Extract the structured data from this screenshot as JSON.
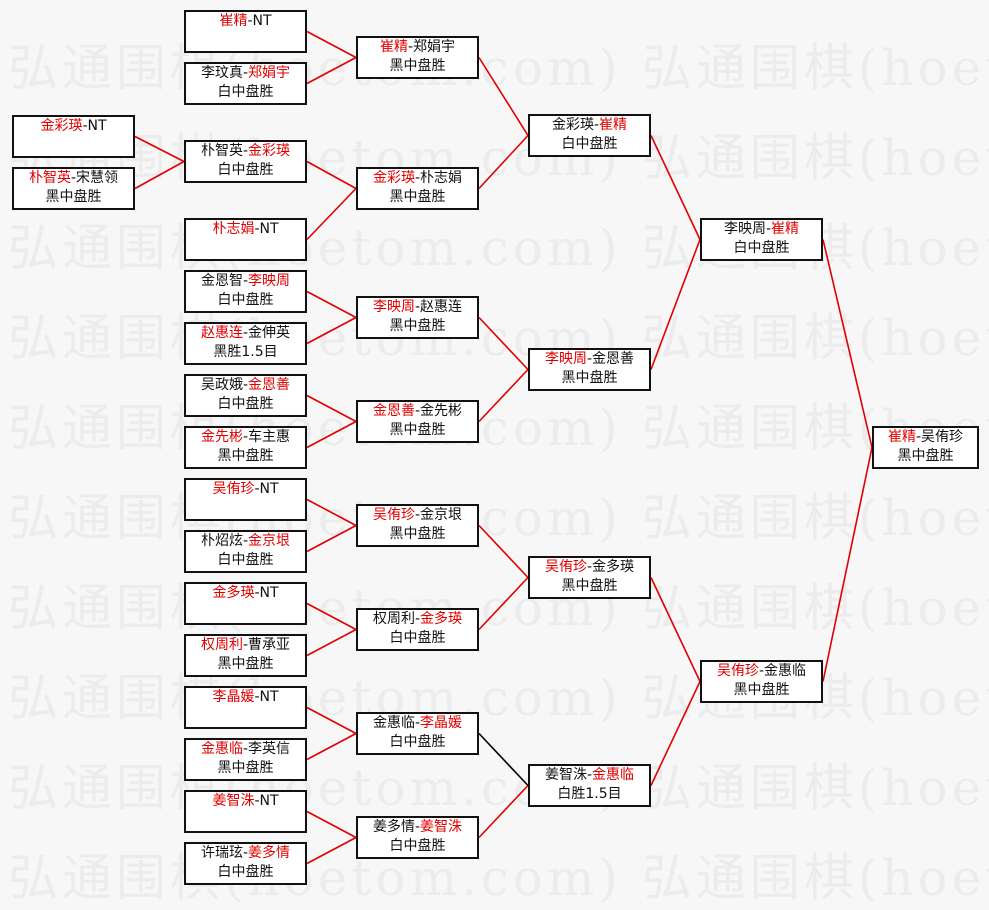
{
  "watermark": "弘通围棋(hoetom.com)",
  "colors": {
    "winner": "#e00000",
    "line": "#e00000",
    "line_alt": "#000000",
    "border": "#111111"
  },
  "separator": "-",
  "matches": [
    {
      "p1": "金彩瑛",
      "p2": "NT",
      "winner": 1,
      "result": ""
    },
    {
      "p1": "朴智英",
      "p2": "宋慧领",
      "winner": 1,
      "result": "黑中盘胜"
    },
    {
      "p1": "崔精",
      "p2": "NT",
      "winner": 1,
      "result": ""
    },
    {
      "p1": "李玟真",
      "p2": "郑娟宇",
      "winner": 2,
      "result": "白中盘胜"
    },
    {
      "p1": "朴智英",
      "p2": "金彩瑛",
      "winner": 2,
      "result": "白中盘胜"
    },
    {
      "p1": "朴志娟",
      "p2": "NT",
      "winner": 1,
      "result": ""
    },
    {
      "p1": "金恩智",
      "p2": "李映周",
      "winner": 2,
      "result": "白中盘胜"
    },
    {
      "p1": "赵惠连",
      "p2": "金伸英",
      "winner": 1,
      "result": "黑胜1.5目"
    },
    {
      "p1": "吴政娥",
      "p2": "金恩善",
      "winner": 2,
      "result": "白中盘胜"
    },
    {
      "p1": "金先彬",
      "p2": "车主惠",
      "winner": 1,
      "result": "黑中盘胜"
    },
    {
      "p1": "吴侑珍",
      "p2": "NT",
      "winner": 1,
      "result": ""
    },
    {
      "p1": "朴炤炫",
      "p2": "金京垠",
      "winner": 2,
      "result": "白中盘胜"
    },
    {
      "p1": "金多瑛",
      "p2": "NT",
      "winner": 1,
      "result": ""
    },
    {
      "p1": "权周利",
      "p2": "曹承亚",
      "winner": 1,
      "result": "黑中盘胜"
    },
    {
      "p1": "李晶媛",
      "p2": "NT",
      "winner": 1,
      "result": ""
    },
    {
      "p1": "金惠临",
      "p2": "李英信",
      "winner": 1,
      "result": "黑中盘胜"
    },
    {
      "p1": "姜智洙",
      "p2": "NT",
      "winner": 1,
      "result": ""
    },
    {
      "p1": "许瑞玹",
      "p2": "姜多情",
      "winner": 2,
      "result": "白中盘胜"
    },
    {
      "p1": "崔精",
      "p2": "郑娟宇",
      "winner": 1,
      "result": "黑中盘胜"
    },
    {
      "p1": "金彩瑛",
      "p2": "朴志娟",
      "winner": 1,
      "result": "黑中盘胜"
    },
    {
      "p1": "李映周",
      "p2": "赵惠连",
      "winner": 1,
      "result": "黑中盘胜"
    },
    {
      "p1": "金恩善",
      "p2": "金先彬",
      "winner": 1,
      "result": "黑中盘胜"
    },
    {
      "p1": "吴侑珍",
      "p2": "金京垠",
      "winner": 1,
      "result": "黑中盘胜"
    },
    {
      "p1": "权周利",
      "p2": "金多瑛",
      "winner": 2,
      "result": "白中盘胜"
    },
    {
      "p1": "金惠临",
      "p2": "李晶媛",
      "winner": 2,
      "result": "白中盘胜"
    },
    {
      "p1": "姜多情",
      "p2": "姜智洙",
      "winner": 2,
      "result": "白中盘胜"
    },
    {
      "p1": "金彩瑛",
      "p2": "崔精",
      "winner": 2,
      "result": "白中盘胜"
    },
    {
      "p1": "李映周",
      "p2": "金恩善",
      "winner": 1,
      "result": "黑中盘胜"
    },
    {
      "p1": "吴侑珍",
      "p2": "金多瑛",
      "winner": 1,
      "result": "黑中盘胜"
    },
    {
      "p1": "姜智洙",
      "p2": "金惠临",
      "winner": 2,
      "result": "白胜1.5目"
    },
    {
      "p1": "李映周",
      "p2": "崔精",
      "winner": 2,
      "result": "白中盘胜"
    },
    {
      "p1": "吴侑珍",
      "p2": "金惠临",
      "winner": 1,
      "result": "黑中盘胜"
    },
    {
      "p1": "崔精",
      "p2": "吴侑珍",
      "winner": 1,
      "result": "黑中盘胜"
    }
  ]
}
